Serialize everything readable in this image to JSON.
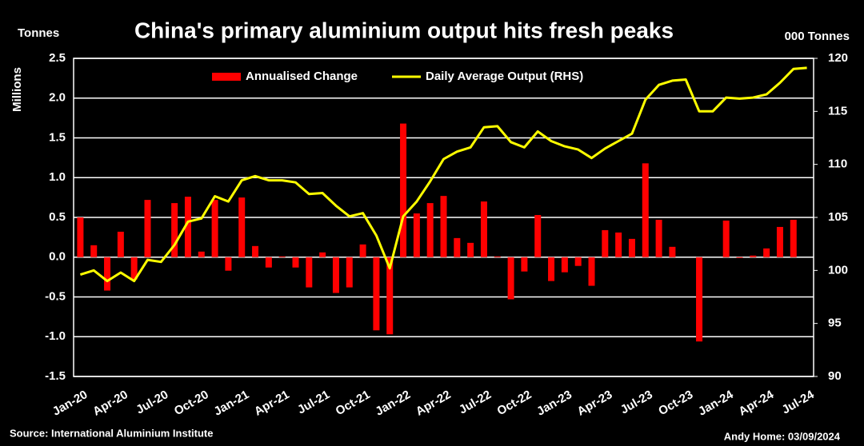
{
  "chart_data": {
    "type": "bar_line",
    "title": "China's primary aluminium output hits fresh peaks",
    "y_label_top": "Tonnes",
    "y_label": "Millions",
    "y2_label": "000 Tonnes",
    "source": "Source: International Aluminium Institute",
    "credit": "Andy Home: 03/09/2024",
    "categories": [
      "Jan-20",
      null,
      null,
      "Apr-20",
      null,
      null,
      "Jul-20",
      null,
      null,
      "Oct-20",
      null,
      null,
      "Jan-21",
      null,
      null,
      "Apr-21",
      null,
      null,
      "Jul-21",
      null,
      null,
      "Oct-21",
      null,
      null,
      "Jan-22",
      null,
      null,
      "Apr-22",
      null,
      null,
      "Jul-22",
      null,
      null,
      "Oct-22",
      null,
      null,
      "Jan-23",
      null,
      null,
      "Apr-23",
      null,
      null,
      "Jul-23",
      null,
      null,
      "Oct-23",
      null,
      null,
      "Jan-24",
      null,
      null,
      "Apr-24",
      null,
      null,
      "Jul-24"
    ],
    "series": [
      {
        "name": "Annualised Change",
        "type": "bar",
        "color": "#ff0000",
        "values": [
          0.5,
          0.15,
          -0.42,
          0.32,
          -0.28,
          0.72,
          0,
          0.68,
          0.76,
          0.07,
          0.72,
          -0.17,
          0.75,
          0.14,
          -0.13,
          0.01,
          -0.13,
          -0.38,
          0.06,
          -0.45,
          -0.38,
          0.16,
          -0.92,
          -0.97,
          1.68,
          0.55,
          0.68,
          0.77,
          0.24,
          0.18,
          0.7,
          0.01,
          -0.53,
          -0.18,
          0.53,
          -0.3,
          -0.19,
          -0.11,
          -0.36,
          0.34,
          0.31,
          0.23,
          1.18,
          0.47,
          0.13,
          0,
          -1.06,
          0,
          0.46,
          -0.01,
          0.02,
          0.11,
          0.38,
          0.47,
          0
        ]
      },
      {
        "name": "Daily Average Output (RHS)",
        "type": "line",
        "axis": "y2",
        "color": "#ffff00",
        "values": [
          99.6,
          100.0,
          99.0,
          99.8,
          99.0,
          101.0,
          100.8,
          102.4,
          104.6,
          104.9,
          107.0,
          106.5,
          108.5,
          108.9,
          108.5,
          108.5,
          108.3,
          107.2,
          107.3,
          106.1,
          105.1,
          105.4,
          103.3,
          100.2,
          105.1,
          106.5,
          108.4,
          110.5,
          111.2,
          111.6,
          113.5,
          113.6,
          112.1,
          111.6,
          113.1,
          112.2,
          111.7,
          111.4,
          110.6,
          111.5,
          112.2,
          112.9,
          116.1,
          117.5,
          117.9,
          118.0,
          115.0,
          115.0,
          116.3,
          116.2,
          116.3,
          116.6,
          117.7,
          119.0,
          119.1
        ]
      }
    ],
    "ylim": [
      -1.5,
      2.5
    ],
    "yticks": [
      -1.5,
      {
        "value": -1,
        "label": "-1.0"
      },
      -0.5,
      {
        "value": 0,
        "label": "0.0"
      },
      0.5,
      {
        "value": 1,
        "label": "1.0"
      },
      1.5,
      {
        "value": 2,
        "label": "2.0"
      },
      2.5
    ],
    "y2lim": [
      90,
      120
    ],
    "y2ticks": [
      90,
      95,
      100,
      105,
      110,
      115,
      120
    ],
    "grid": true,
    "legend": "top"
  }
}
